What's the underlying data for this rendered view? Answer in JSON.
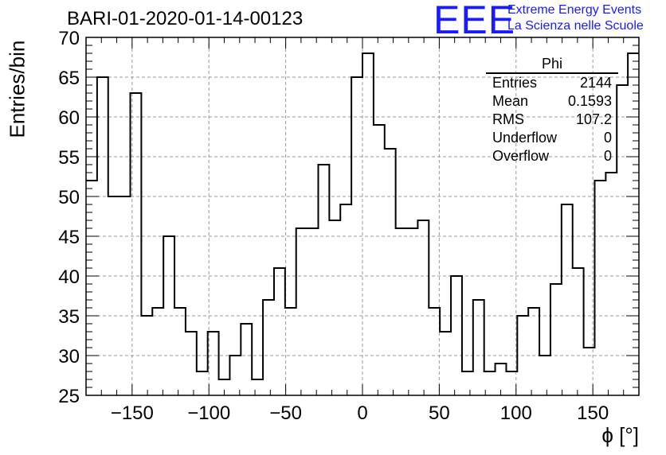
{
  "title": "BARI-01-2020-01-14-00123",
  "logo": {
    "text": "EEE",
    "line1": "Extreme Energy Events",
    "line2": "La Scienza nelle Scuole",
    "color": "#1a1aff"
  },
  "stats": {
    "title": "Phi",
    "rows": [
      {
        "label": "Entries",
        "value": "2144"
      },
      {
        "label": "Mean",
        "value": "0.1593"
      },
      {
        "label": "RMS",
        "value": "107.2"
      },
      {
        "label": "Underflow",
        "value": "0"
      },
      {
        "label": "Overflow",
        "value": "0"
      }
    ]
  },
  "chart_data": {
    "type": "histogram",
    "xlabel": "ϕ [°]",
    "ylabel": "Entries/bin",
    "xlim": [
      -180,
      180
    ],
    "ylim": [
      25,
      70
    ],
    "bin_width": 7.2,
    "grid": true,
    "xticks": [
      -150,
      -100,
      -50,
      0,
      50,
      100,
      150
    ],
    "yticks": [
      25,
      30,
      35,
      40,
      45,
      50,
      55,
      60,
      65,
      70
    ],
    "values": [
      52,
      65,
      50,
      50,
      63,
      35,
      36,
      45,
      36,
      33,
      28,
      33,
      27,
      30,
      34,
      27,
      37,
      41,
      36,
      46,
      46,
      54,
      47,
      49,
      65,
      68,
      59,
      56,
      46,
      46,
      47,
      36,
      33,
      40,
      28,
      37,
      28,
      29,
      28,
      35,
      36,
      30,
      39,
      49,
      41,
      31,
      52,
      53,
      64,
      68
    ]
  }
}
